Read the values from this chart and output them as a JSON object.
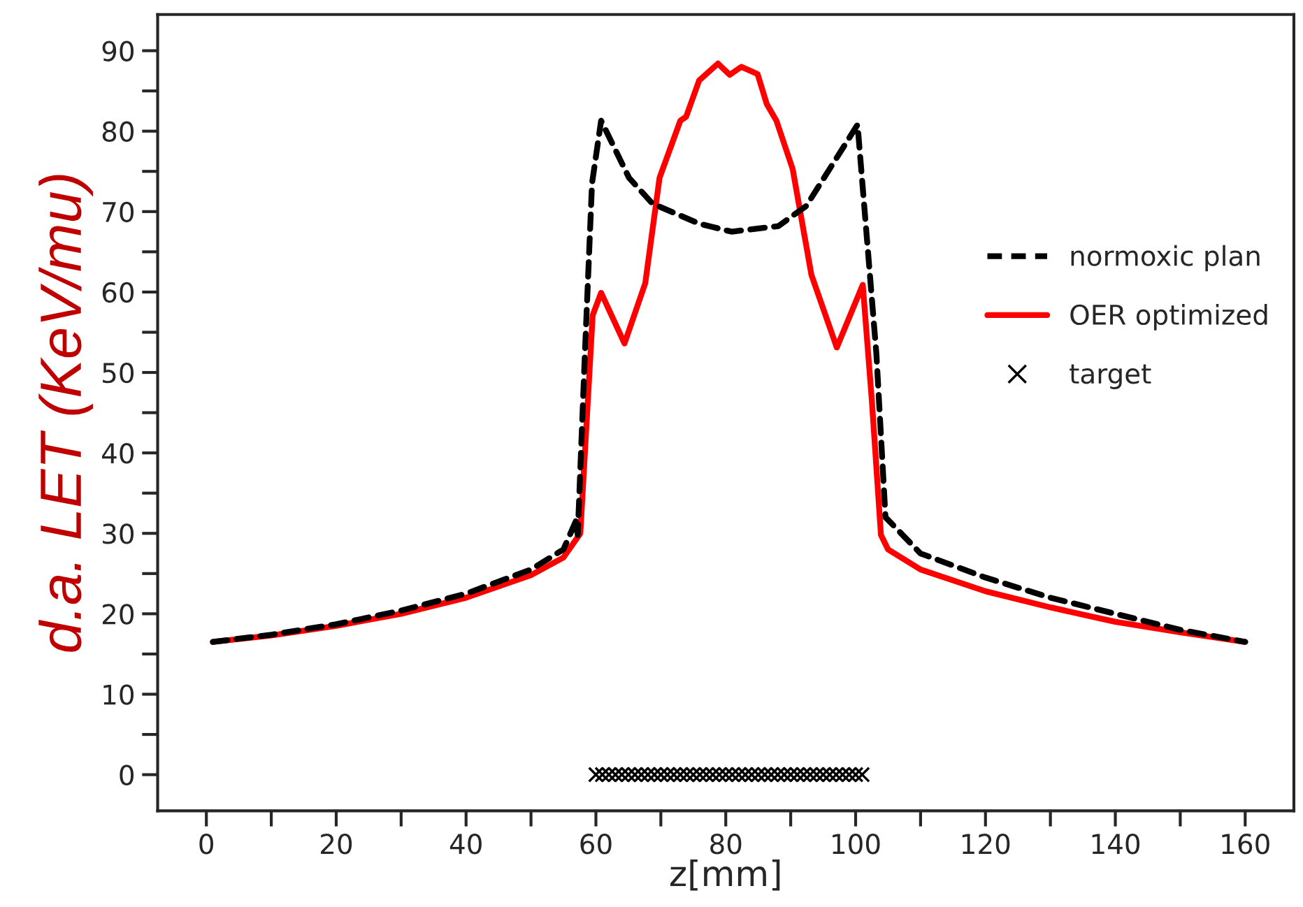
{
  "chart_data": {
    "type": "line",
    "xlabel": "z[mm]",
    "ylabel": "d.a. LET (KeV/mu)",
    "xlim": [
      -7.5,
      167.5
    ],
    "ylim": [
      -4.5,
      94.5
    ],
    "xticks": [
      0,
      {
        "value": 10,
        "label": null
      },
      20,
      {
        "value": 30,
        "label": null
      },
      40,
      {
        "value": 50,
        "label": null
      },
      60,
      {
        "value": 70,
        "label": null
      },
      80,
      {
        "value": 90,
        "label": null
      },
      100,
      {
        "value": 110,
        "label": null
      },
      120,
      {
        "value": 130,
        "label": null
      },
      140,
      {
        "value": 150,
        "label": null
      },
      160
    ],
    "yticks": [
      0,
      {
        "value": 5,
        "label": null
      },
      10,
      {
        "value": 15,
        "label": null
      },
      20,
      {
        "value": 25,
        "label": null
      },
      30,
      {
        "value": 35,
        "label": null
      },
      40,
      {
        "value": 45,
        "label": null
      },
      50,
      {
        "value": 55,
        "label": null
      },
      60,
      {
        "value": 65,
        "label": null
      },
      70,
      {
        "value": 75,
        "label": null
      },
      80,
      {
        "value": 85,
        "label": null
      },
      90
    ],
    "grid": false,
    "legend": "right",
    "series": [
      {
        "name": "normoxic plan",
        "line_style": "dashed",
        "color": "#000000",
        "x": [
          1,
          10,
          20,
          30,
          40,
          50,
          55,
          56.9,
          57.2,
          58.3,
          59.4,
          60.8,
          65.1,
          68.7,
          75.9,
          80.9,
          88.1,
          92.4,
          100.3,
          103.2,
          104.6,
          110,
          120,
          130,
          140,
          150,
          160
        ],
        "values": [
          16.5,
          17.4,
          18.7,
          20.4,
          22.5,
          25.5,
          28,
          31.5,
          29.8,
          52.3,
          73.5,
          81.3,
          74.2,
          71,
          68.5,
          67.5,
          68.2,
          70.7,
          80.8,
          52.3,
          32,
          27.5,
          24.5,
          22,
          20,
          18,
          16.5
        ]
      },
      {
        "name": "OER optimized",
        "line_style": "solid",
        "color": "#ff0000",
        "x": [
          1,
          10,
          20,
          30,
          40,
          50,
          55,
          57.6,
          59.5,
          60.8,
          64.4,
          67.6,
          69.8,
          73,
          73.9,
          75.9,
          78.8,
          80.6,
          82.4,
          84.9,
          86.3,
          87.8,
          90.3,
          93.2,
          97.1,
          101.1,
          102.5,
          103.9,
          105,
          110,
          120,
          130,
          140,
          150,
          160
        ],
        "values": [
          16.5,
          17.3,
          18.5,
          20,
          22,
          24.8,
          27,
          30,
          57.1,
          59.9,
          53.6,
          61.1,
          74.2,
          81.3,
          81.8,
          86.3,
          88.4,
          87,
          88,
          87.1,
          83.4,
          81.3,
          75.3,
          62.1,
          53.1,
          60.9,
          46.5,
          29.8,
          28,
          25.5,
          22.8,
          20.8,
          19,
          17.7,
          16.5
        ]
      },
      {
        "name": "target",
        "type": "scatter",
        "marker": "cross",
        "color": "#000000",
        "x": [
          60,
          61,
          62,
          63,
          64,
          65,
          66,
          67,
          68,
          69,
          70,
          71,
          72,
          73,
          74,
          75,
          76,
          77,
          78,
          79,
          80,
          81,
          82,
          83,
          84,
          85,
          86,
          87,
          88,
          89,
          90,
          91,
          92,
          93,
          94,
          95,
          96,
          97,
          98,
          99,
          100,
          101
        ],
        "values": [
          0,
          0,
          0,
          0,
          0,
          0,
          0,
          0,
          0,
          0,
          0,
          0,
          0,
          0,
          0,
          0,
          0,
          0,
          0,
          0,
          0,
          0,
          0,
          0,
          0,
          0,
          0,
          0,
          0,
          0,
          0,
          0,
          0,
          0,
          0,
          0,
          0,
          0,
          0,
          0,
          0,
          0
        ]
      }
    ]
  }
}
